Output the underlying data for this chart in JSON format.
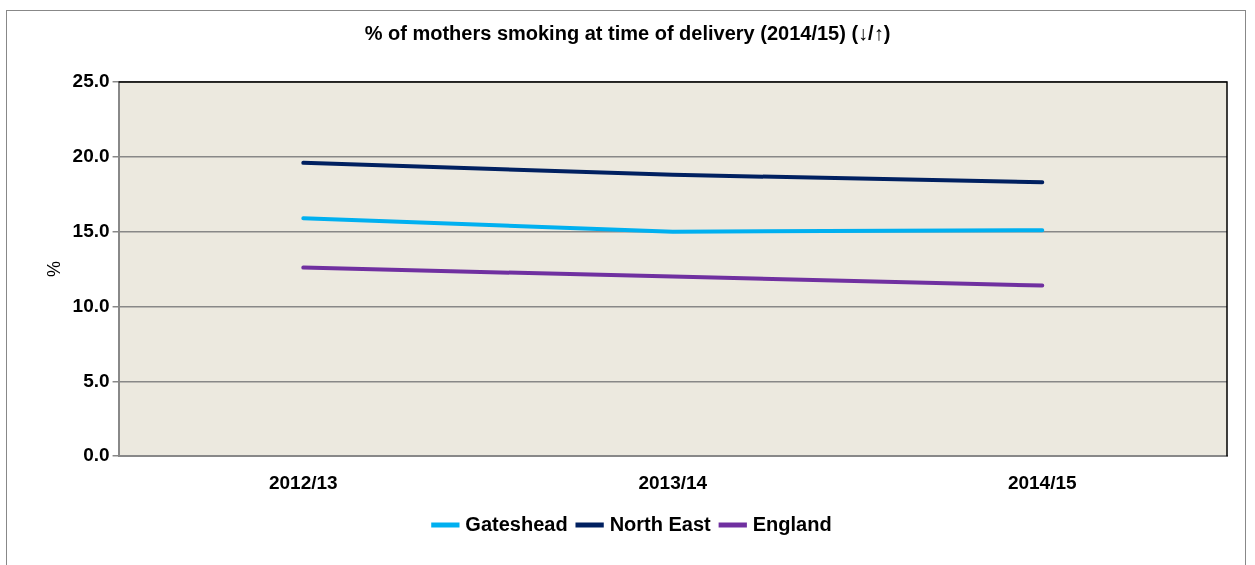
{
  "chart_data": {
    "type": "line",
    "title": "% of mothers smoking at time of delivery (2014/15) (↓/↑)",
    "ylabel": "%",
    "categories": [
      "2012/13",
      "2013/14",
      "2014/15"
    ],
    "series": [
      {
        "name": "Gateshead",
        "color": "#00b0f0",
        "values": [
          15.9,
          15.0,
          15.1
        ]
      },
      {
        "name": "North East",
        "color": "#002060",
        "values": [
          19.6,
          18.8,
          18.3
        ]
      },
      {
        "name": "England",
        "color": "#7030a0",
        "values": [
          12.6,
          12.0,
          11.4
        ]
      }
    ],
    "ylim": [
      0,
      25
    ],
    "yticks": [
      {
        "value": 0,
        "label": "0.0"
      },
      {
        "value": 5,
        "label": "5.0"
      },
      {
        "value": 10,
        "label": "10.0"
      },
      {
        "value": 15,
        "label": "15.0"
      },
      {
        "value": 20,
        "label": "20.0"
      },
      {
        "value": 25,
        "label": "25.0"
      }
    ],
    "grid": "y",
    "legend": "bottom",
    "marker": "none",
    "line_style": "solid"
  }
}
